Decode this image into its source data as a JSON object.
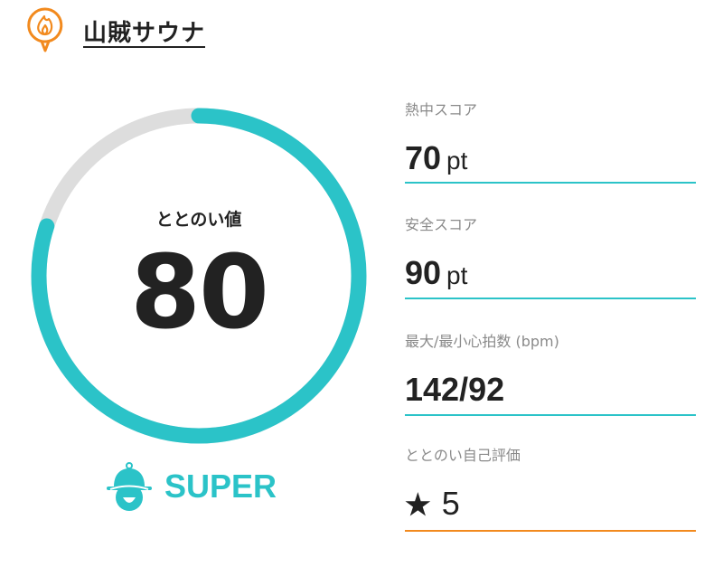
{
  "header": {
    "title": "山賊サウナ",
    "logo_icon": "flame-pin-icon"
  },
  "gauge": {
    "label": "ととのい値",
    "value": "80",
    "percent": 80,
    "color": "#2bc3c8",
    "track_color": "#dddddd"
  },
  "rank": {
    "label": "SUPER",
    "icon": "sauna-hat-icon"
  },
  "stats": [
    {
      "label": "熱中スコア",
      "value": "70",
      "unit": "pt"
    },
    {
      "label": "安全スコア",
      "value": "90",
      "unit": "pt"
    },
    {
      "label": "最大/最小心拍数 (bpm)",
      "value": "142/92"
    },
    {
      "label": "ととのい自己評価",
      "value": "5",
      "icon": "star-icon"
    }
  ],
  "colors": {
    "accent": "#2bc3c8",
    "orange": "#f28a1e"
  }
}
